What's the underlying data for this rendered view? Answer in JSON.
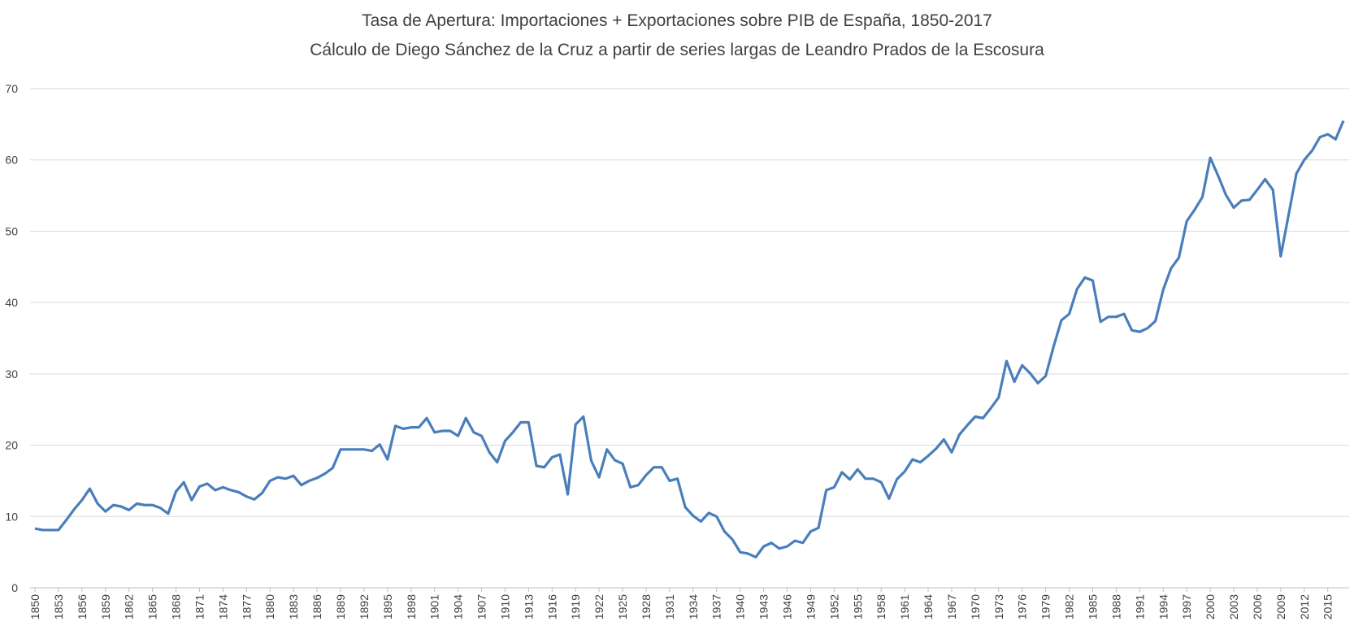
{
  "chart_data": {
    "type": "line",
    "title": "Tasa de Apertura: Importaciones + Exportaciones sobre PIB de España, 1850-2017",
    "subtitle": "Cálculo de Diego Sánchez de la Cruz a partir de series largas de Leandro Prados de la Escosura",
    "x": [
      1850,
      1851,
      1852,
      1853,
      1854,
      1855,
      1856,
      1857,
      1858,
      1859,
      1860,
      1861,
      1862,
      1863,
      1864,
      1865,
      1866,
      1867,
      1868,
      1869,
      1870,
      1871,
      1872,
      1873,
      1874,
      1875,
      1876,
      1877,
      1878,
      1879,
      1880,
      1881,
      1882,
      1883,
      1884,
      1885,
      1886,
      1887,
      1888,
      1889,
      1890,
      1891,
      1892,
      1893,
      1894,
      1895,
      1896,
      1897,
      1898,
      1899,
      1900,
      1901,
      1902,
      1903,
      1904,
      1905,
      1906,
      1907,
      1908,
      1909,
      1910,
      1911,
      1912,
      1913,
      1914,
      1915,
      1916,
      1917,
      1918,
      1919,
      1920,
      1921,
      1922,
      1923,
      1924,
      1925,
      1926,
      1927,
      1928,
      1929,
      1930,
      1931,
      1932,
      1933,
      1934,
      1935,
      1936,
      1937,
      1938,
      1939,
      1940,
      1941,
      1942,
      1943,
      1944,
      1945,
      1946,
      1947,
      1948,
      1949,
      1950,
      1951,
      1952,
      1953,
      1954,
      1955,
      1956,
      1957,
      1958,
      1959,
      1960,
      1961,
      1962,
      1963,
      1964,
      1965,
      1966,
      1967,
      1968,
      1969,
      1970,
      1971,
      1972,
      1973,
      1974,
      1975,
      1976,
      1977,
      1978,
      1979,
      1980,
      1981,
      1982,
      1983,
      1984,
      1985,
      1986,
      1987,
      1988,
      1989,
      1990,
      1991,
      1992,
      1993,
      1994,
      1995,
      1996,
      1997,
      1998,
      1999,
      2000,
      2001,
      2002,
      2003,
      2004,
      2005,
      2006,
      2007,
      2008,
      2009,
      2010,
      2011,
      2012,
      2013,
      2014,
      2015,
      2016,
      2017
    ],
    "values": [
      8.3,
      8.1,
      8.1,
      8.1,
      9.5,
      11,
      12.3,
      13.9,
      11.8,
      10.7,
      11.6,
      11.4,
      10.9,
      11.8,
      11.6,
      11.6,
      11.2,
      10.4,
      13.5,
      14.8,
      12.3,
      14.2,
      14.6,
      13.7,
      14.1,
      13.7,
      13.4,
      12.8,
      12.4,
      13.3,
      15,
      15.5,
      15.3,
      15.7,
      14.4,
      15,
      15.4,
      16,
      16.8,
      19.4,
      19.4,
      19.4,
      19.4,
      19.2,
      20.1,
      18,
      22.7,
      22.3,
      22.5,
      22.5,
      23.8,
      21.8,
      22,
      22,
      21.3,
      23.8,
      21.8,
      21.3,
      19,
      17.6,
      20.6,
      21.8,
      23.2,
      23.2,
      17.1,
      16.9,
      18.3,
      18.7,
      13.1,
      22.9,
      24,
      17.8,
      15.5,
      19.4,
      17.9,
      17.4,
      14.1,
      14.4,
      15.8,
      16.9,
      16.9,
      15,
      15.3,
      11.3,
      10.1,
      9.3,
      10.5,
      10,
      7.9,
      6.8,
      5,
      4.8,
      4.3,
      5.8,
      6.3,
      5.5,
      5.8,
      6.6,
      6.3,
      7.9,
      8.4,
      13.7,
      14.1,
      16.2,
      15.2,
      16.6,
      15.3,
      15.3,
      14.8,
      12.5,
      15.2,
      16.3,
      18,
      17.6,
      18.5,
      19.5,
      20.8,
      19,
      21.5,
      22.8,
      24,
      23.8,
      25.2,
      26.7,
      31.8,
      28.9,
      31.2,
      30.1,
      28.7,
      29.7,
      33.8,
      37.5,
      38.4,
      41.9,
      43.5,
      43.1,
      37.3,
      38,
      38,
      38.4,
      36.1,
      35.9,
      36.4,
      37.4,
      41.8,
      44.8,
      46.3,
      51.4,
      53,
      54.8,
      60.3,
      57.8,
      55.1,
      53.3,
      54.3,
      54.4,
      55.8,
      57.3,
      55.8,
      46.5,
      52.3,
      58.1,
      60,
      61.3,
      63.2,
      63.6,
      62.9,
      65.5
    ],
    "color": "#4a7ebb",
    "xlim": [
      1850,
      2017
    ],
    "xticks": [
      1850,
      1853,
      1856,
      1859,
      1862,
      1865,
      1868,
      1871,
      1874,
      1877,
      1880,
      1883,
      1886,
      1889,
      1892,
      1895,
      1898,
      1901,
      1904,
      1907,
      1910,
      1913,
      1916,
      1919,
      1922,
      1925,
      1928,
      1931,
      1934,
      1937,
      1940,
      1943,
      1946,
      1949,
      1952,
      1955,
      1958,
      1961,
      1964,
      1967,
      1970,
      1973,
      1976,
      1979,
      1982,
      1985,
      1988,
      1991,
      1994,
      1997,
      2000,
      2003,
      2006,
      2009,
      2012,
      2015
    ],
    "ylim": [
      0,
      70
    ],
    "yticks": [
      0,
      10,
      20,
      30,
      40,
      50,
      60,
      70
    ],
    "grid": true
  }
}
